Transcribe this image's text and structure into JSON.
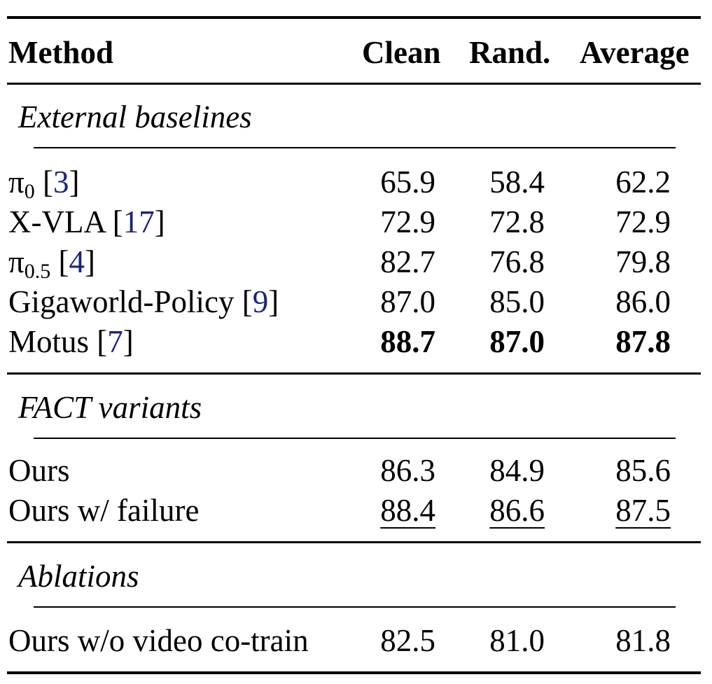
{
  "header": {
    "method": "Method",
    "clean": "Clean",
    "rand": "Rand.",
    "average": "Average"
  },
  "sections": [
    {
      "title": "External baselines",
      "rows": [
        {
          "name": "π",
          "sub": "0",
          "ref": "3",
          "clean": "65.9",
          "rand": "58.4",
          "avg": "62.2"
        },
        {
          "name": "X-VLA",
          "ref": "17",
          "clean": "72.9",
          "rand": "72.8",
          "avg": "72.9"
        },
        {
          "name": "π",
          "sub": "0.5",
          "ref": "4",
          "clean": "82.7",
          "rand": "76.8",
          "avg": "79.8"
        },
        {
          "name": "Gigaworld-Policy",
          "ref": "9",
          "clean": "87.0",
          "rand": "85.0",
          "avg": "86.0"
        },
        {
          "name": "Motus",
          "ref": "7",
          "clean": "88.7",
          "rand": "87.0",
          "avg": "87.8",
          "style": "bold"
        }
      ]
    },
    {
      "title": "FACT variants",
      "rows": [
        {
          "name": "Ours",
          "clean": "86.3",
          "rand": "84.9",
          "avg": "85.6"
        },
        {
          "name": "Ours w/ failure",
          "clean": "88.4",
          "rand": "86.6",
          "avg": "87.5",
          "style": "underline"
        }
      ]
    },
    {
      "title": "Ablations",
      "rows": [
        {
          "name": "Ours w/o video co-train",
          "clean": "82.5",
          "rand": "81.0",
          "avg": "81.8"
        }
      ]
    }
  ]
}
